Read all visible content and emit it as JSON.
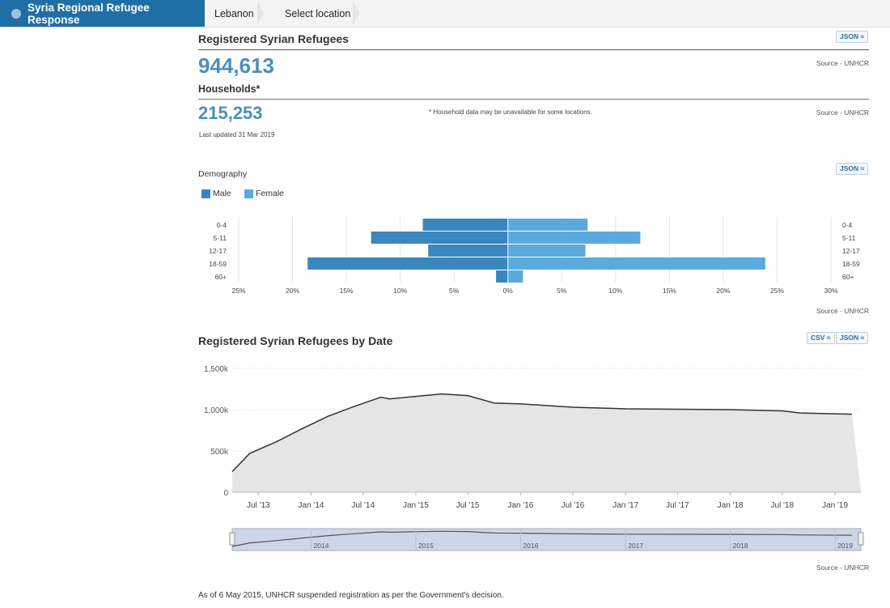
{
  "topbar": {
    "brand": "Syria Regional Refugee Response",
    "crumb1": "Lebanon",
    "crumb2": "Select location"
  },
  "registered": {
    "title": "Registered Syrian Refugees",
    "value": "944,613",
    "source": "Source - UNHCR",
    "json_label": "JSON"
  },
  "households": {
    "title": "Households*",
    "value": "215,253",
    "note": "* Household data may be unavailable for some locations.",
    "source": "Source - UNHCR",
    "updated": "Last updated 31 Mar 2019"
  },
  "demography": {
    "title": "Demography",
    "json_label": "JSON",
    "legend_male": "Male",
    "legend_female": "Female",
    "source": "Source - UNHCR",
    "colors": {
      "male": "#3a87bd",
      "female": "#5aaadb"
    }
  },
  "by_date": {
    "title": "Registered Syrian Refugees by Date",
    "csv_label": "CSV",
    "json_label": "JSON",
    "source": "Source - UNHCR"
  },
  "footnote": "As of 6 May 2015, UNHCR suspended registration as per the Government's decision.",
  "chart_data": [
    {
      "type": "bar",
      "orientation": "horizontal-pyramid",
      "categories": [
        "0-4",
        "5-11",
        "12-17",
        "18-59",
        "60+"
      ],
      "series": [
        {
          "name": "Male",
          "values": [
            7.9,
            12.7,
            7.4,
            18.6,
            1.1
          ]
        },
        {
          "name": "Female",
          "values": [
            7.4,
            12.3,
            7.2,
            23.9,
            1.4
          ]
        }
      ],
      "x_ticks": [
        "25%",
        "20%",
        "15%",
        "10%",
        "5%",
        "0%",
        "5%",
        "10%",
        "15%",
        "20%",
        "25%",
        "30%"
      ],
      "xlim": [
        -25,
        30
      ],
      "grid": true,
      "legend_position": "top-left"
    },
    {
      "type": "area",
      "x_ticks": [
        "Jul '13",
        "Jan '14",
        "Jul '14",
        "Jan '15",
        "Jul '15",
        "Jan '16",
        "Jul '16",
        "Jan '17",
        "Jul '17",
        "Jan '18",
        "Jul '18",
        "Jan '19"
      ],
      "y_ticks": [
        "0",
        "500k",
        "1,000k",
        "1,500k"
      ],
      "ylim": [
        0,
        1500000
      ],
      "x": [
        "2013-04",
        "2013-06",
        "2013-09",
        "2013-12",
        "2014-03",
        "2014-06",
        "2014-09",
        "2014-10",
        "2015-01",
        "2015-04",
        "2015-07",
        "2015-10",
        "2016-01",
        "2016-07",
        "2017-01",
        "2017-07",
        "2018-01",
        "2018-07",
        "2018-09",
        "2019-03"
      ],
      "values": [
        250000,
        470000,
        610000,
        770000,
        920000,
        1040000,
        1150000,
        1130000,
        1160000,
        1190000,
        1170000,
        1080000,
        1070000,
        1030000,
        1010000,
        1005000,
        1000000,
        985000,
        960000,
        944613
      ],
      "grid": true,
      "navigator_labels": [
        "2014",
        "2015",
        "2016",
        "2017",
        "2018",
        "2019"
      ]
    }
  ]
}
